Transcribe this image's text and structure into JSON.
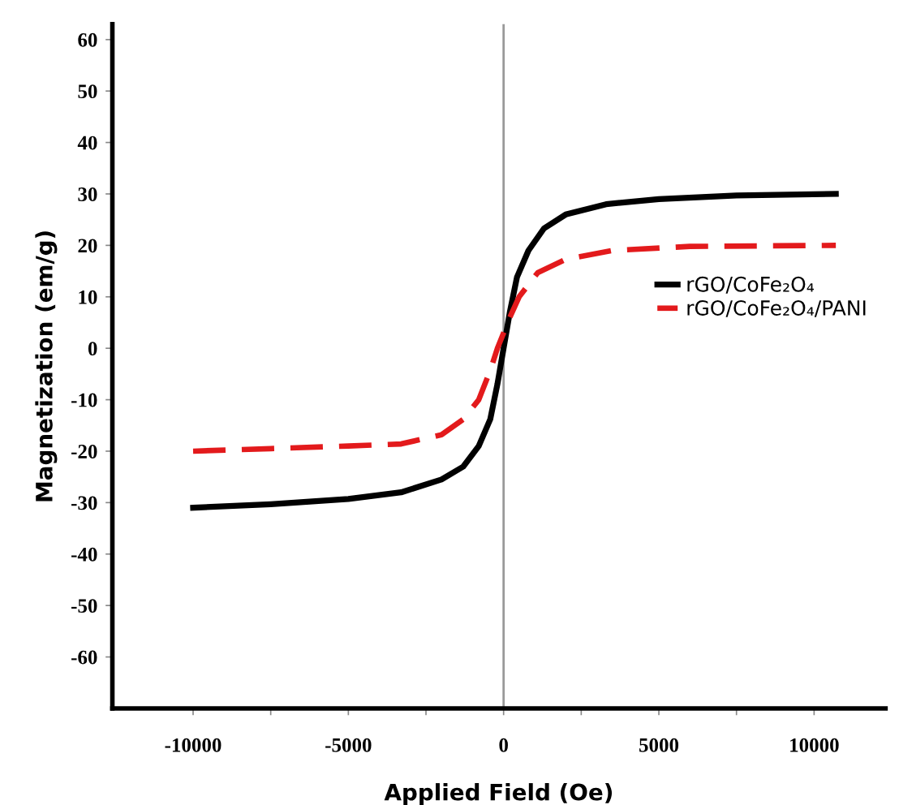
{
  "chart_data": {
    "type": "line",
    "xlabel": "Applied Field (Oe)",
    "ylabel": "Magnetization (em/g)",
    "xlim": [
      -12600,
      12300
    ],
    "ylim": [
      -70,
      63
    ],
    "xticks": [
      -10000,
      {
        "value": -7500,
        "label": null
      },
      -5000,
      {
        "value": -2500,
        "label": null
      },
      0,
      {
        "value": 2500,
        "label": null
      },
      5000,
      {
        "value": 7500,
        "label": null
      },
      10000
    ],
    "yticks": [
      -60,
      -50,
      -40,
      -30,
      -20,
      -10,
      0,
      10,
      20,
      30,
      40,
      50,
      60
    ],
    "grid": false,
    "legend": "right",
    "marker": "none",
    "ref_lines": [
      {
        "axis": "x",
        "value": 0,
        "color": "#999999"
      }
    ],
    "series": [
      {
        "name": "rGO/CoFe₂O₄",
        "color": "#000000",
        "line_style": "solid",
        "x": [
          -10000,
          -7500,
          -5000,
          -3300,
          -2000,
          -1300,
          -800,
          -430,
          -200,
          0,
          200,
          430,
          800,
          1300,
          2000,
          3300,
          5000,
          7500,
          10700
        ],
        "values": [
          -31,
          -30.3,
          -29.3,
          -28,
          -25.5,
          -23,
          -19,
          -13.8,
          -7,
          0,
          7,
          13.8,
          19,
          23.3,
          26,
          28,
          29,
          29.7,
          30
        ]
      },
      {
        "name": "rGO/CoFe₂O₄/PANI",
        "color": "#e31a1c",
        "line_style": "dashed",
        "x": [
          -10000,
          -7500,
          -5000,
          -3300,
          -2000,
          -1300,
          -800,
          -430,
          -200,
          0,
          200,
          500,
          1100,
          2000,
          3500,
          6000,
          10700
        ],
        "values": [
          -20,
          -19.5,
          -19,
          -18.6,
          -16.8,
          -13.8,
          -10,
          -4.3,
          0,
          3,
          6,
          10,
          14.7,
          17.3,
          19,
          19.8,
          20
        ]
      }
    ]
  }
}
